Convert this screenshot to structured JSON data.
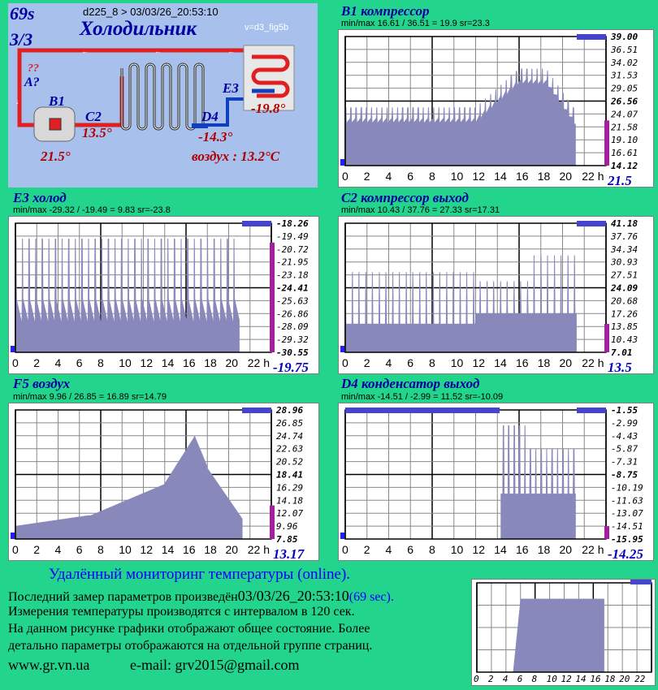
{
  "header": {
    "period": "69s",
    "page": "3/3",
    "device": "d225_8  >   03/03/26_20:53:10",
    "title": "Холодильник",
    "version": "v=d3_fig5b"
  },
  "diagram": {
    "unknown": "??",
    "label_a": "A?",
    "label_b1": "B1",
    "label_c2": "C2",
    "label_d4": "D4",
    "label_e3": "E3",
    "val_b1": "21.5°",
    "val_c2": "13.5°",
    "val_d4": "-14.3°",
    "val_e3": "-19.8°",
    "air": "воздух : 13.2°C"
  },
  "chart_data": [
    {
      "type": "area",
      "id": "b1",
      "title": "B1 компрессор",
      "stats": "min/max  16.61 / 36.51 = 19.9     sr=23.3",
      "yticks": [
        "39.00",
        "36.51",
        "34.02",
        "31.53",
        "29.05",
        "26.56",
        "24.07",
        "21.58",
        "19.10",
        "16.61",
        "14.12"
      ],
      "ylim": [
        14.12,
        39.0
      ],
      "xticks": [
        "0",
        "2",
        "4",
        "6",
        "8",
        "10",
        "12",
        "14",
        "16",
        "18",
        "20",
        "22 h"
      ],
      "xlim": [
        0,
        24
      ],
      "current": "21.5",
      "color": "#8888bb"
    },
    {
      "type": "area",
      "id": "e3",
      "title": "E3 холод",
      "stats": "min/max   -29.32 / -19.49 = 9.83     sr=-23.8",
      "yticks": [
        "-18.26",
        "-19.49",
        "-20.72",
        "-21.95",
        "-23.18",
        "-24.41",
        "-25.63",
        "-26.86",
        "-28.09",
        "-29.32",
        "-30.55"
      ],
      "ylim": [
        -30.55,
        -18.26
      ],
      "xticks": [
        "0",
        "2",
        "4",
        "6",
        "8",
        "10",
        "12",
        "14",
        "16",
        "18",
        "20",
        "22 h"
      ],
      "xlim": [
        0,
        24
      ],
      "current": "-19.75",
      "color": "#8888bb"
    },
    {
      "type": "area",
      "id": "c2",
      "title": "C2 компрессор выход",
      "stats": "min/max   10.43 / 37.76 = 27.33     sr=17.31",
      "yticks": [
        "41.18",
        "37.76",
        "34.34",
        "30.93",
        "27.51",
        "24.09",
        "20.68",
        "17.26",
        "13.85",
        "10.43",
        "7.01"
      ],
      "ylim": [
        7.01,
        41.18
      ],
      "xticks": [
        "0",
        "2",
        "4",
        "6",
        "8",
        "10",
        "12",
        "14",
        "16",
        "18",
        "20",
        "22 h"
      ],
      "xlim": [
        0,
        24
      ],
      "current": "13.5",
      "color": "#8888bb"
    },
    {
      "type": "area",
      "id": "f5",
      "title": "F5 воздух",
      "stats": "min/max   9.96 / 26.85 = 16.89      sr=14.79",
      "yticks": [
        "28.96",
        "26.85",
        "24.74",
        "22.63",
        "20.52",
        "18.41",
        "16.29",
        "14.18",
        "12.07",
        "9.96",
        "7.85"
      ],
      "ylim": [
        7.85,
        28.96
      ],
      "xticks": [
        "0",
        "2",
        "4",
        "6",
        "8",
        "10",
        "12",
        "14",
        "16",
        "18",
        "20",
        "22 h"
      ],
      "xlim": [
        0,
        24
      ],
      "current": "13.17",
      "color": "#8888bb"
    },
    {
      "type": "area",
      "id": "d4",
      "title": "D4 конденсатор выход",
      "stats": "min/max   -14.51 / -2.99 = 11.52     sr=-10.09",
      "yticks": [
        "-1.55",
        "-2.99",
        "-4.43",
        "-5.87",
        "-7.31",
        "-8.75",
        "-10.19",
        "-11.63",
        "-13.07",
        "-14.51",
        "-15.95"
      ],
      "ylim": [
        -15.95,
        -1.55
      ],
      "xticks": [
        "0",
        "2",
        "4",
        "6",
        "8",
        "10",
        "12",
        "14",
        "16",
        "18",
        "20",
        "22 h"
      ],
      "xlim": [
        0,
        24
      ],
      "current": "-14.25",
      "color": "#8888bb"
    },
    {
      "type": "area",
      "id": "mini",
      "xticks": [
        "0",
        "2",
        "4",
        "6",
        "8",
        "10",
        "12",
        "14",
        "16",
        "18",
        "20",
        "22"
      ],
      "xlim": [
        0,
        24
      ],
      "color": "#8888bb"
    }
  ],
  "info": {
    "heading": "Удалённый мониторинг температуры (online).",
    "line1": "Последний замер параметров произведён",
    "line1_time": "03/03/26_20:53:10",
    "line1_sec": "(69 sec).",
    "line2": "Измерения температуры  производятся с интервалом в 120 сек.",
    "line3": "На данном рисунке графики отображают общее состояние. Более",
    "line4": "детально параметры отображаются на отдельной группе страниц.",
    "site": "www.gr.vn.ua",
    "email": "e-mail: grv2015@gmail.com"
  }
}
